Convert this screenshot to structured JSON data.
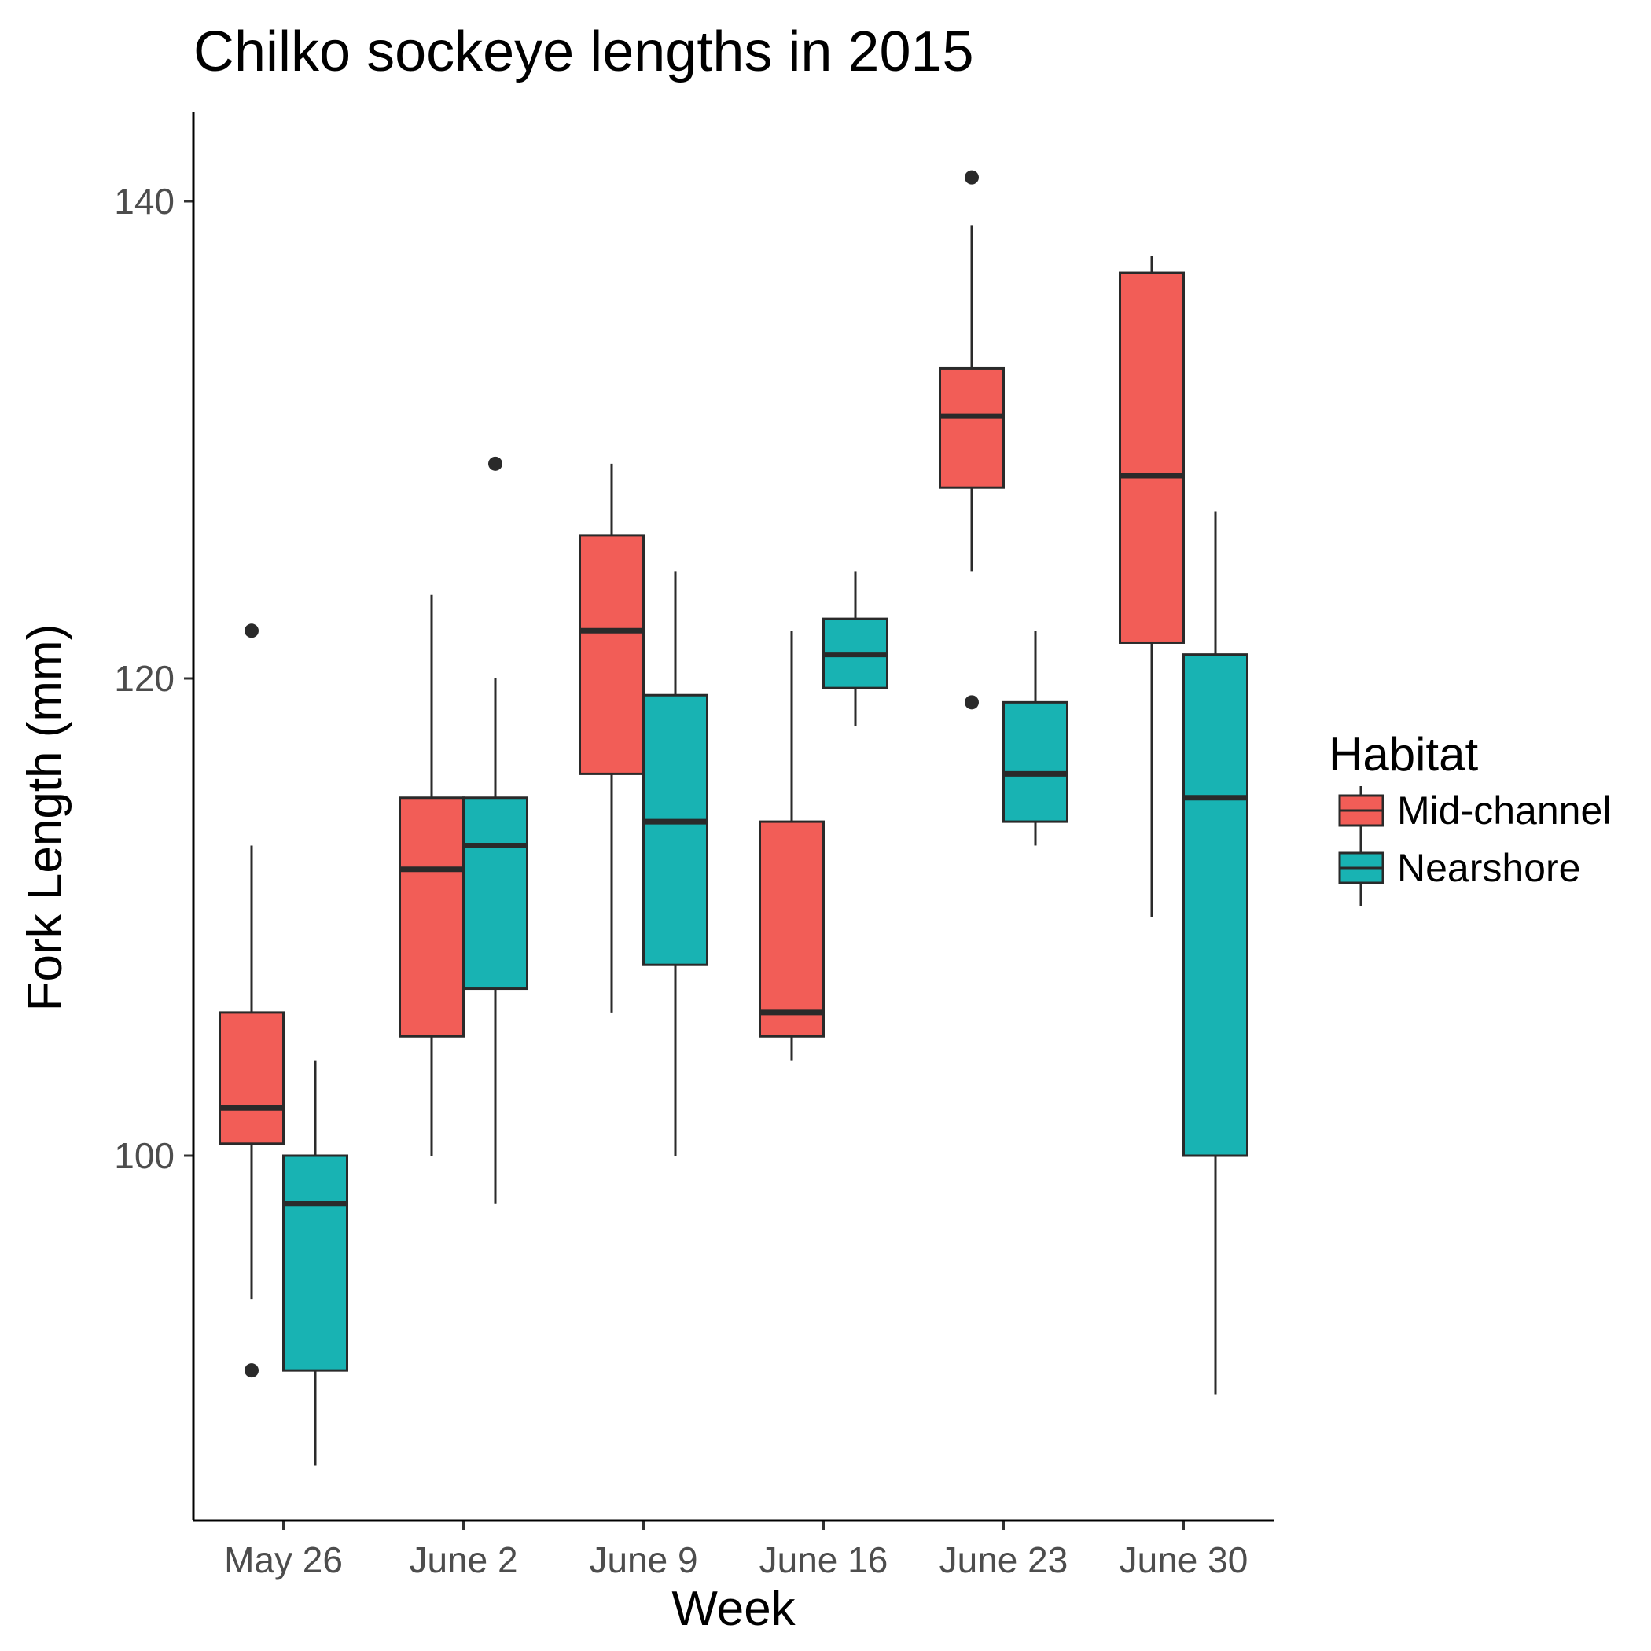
{
  "chart_data": {
    "type": "box",
    "title": "Chilko sockeye lengths in 2015",
    "xlabel": "Week",
    "ylabel": "Fork Length (mm)",
    "ylim": [
      84.5,
      145.5
    ],
    "yticks": [
      100,
      120,
      140
    ],
    "categories": [
      "May 26",
      "June 2",
      "June 9",
      "June 16",
      "June 23",
      "June 30"
    ],
    "legend": {
      "title": "Habitat",
      "position": "right",
      "entries": [
        "Mid-channel",
        "Nearshore"
      ]
    },
    "grid": false,
    "series": [
      {
        "name": "Mid-channel",
        "color": "#F25D57",
        "boxes": [
          {
            "min": 94,
            "q1": 100.5,
            "median": 102,
            "q3": 106,
            "max": 113,
            "outliers": [
              122,
              91
            ]
          },
          {
            "min": 100,
            "q1": 105,
            "median": 112,
            "q3": 115,
            "max": 123.5,
            "outliers": []
          },
          {
            "min": 106,
            "q1": 116,
            "median": 122,
            "q3": 126,
            "max": 129,
            "outliers": []
          },
          {
            "min": 104,
            "q1": 105,
            "median": 106,
            "q3": 114,
            "max": 122,
            "outliers": []
          },
          {
            "min": 124.5,
            "q1": 128,
            "median": 131,
            "q3": 133,
            "max": 139,
            "outliers": [
              141,
              119
            ]
          },
          {
            "min": 110,
            "q1": 121.5,
            "median": 128.5,
            "q3": 137,
            "max": 137.7,
            "outliers": []
          }
        ]
      },
      {
        "name": "Nearshore",
        "color": "#18B3B3",
        "boxes": [
          {
            "min": 87,
            "q1": 91,
            "median": 98,
            "q3": 100,
            "max": 104,
            "outliers": []
          },
          {
            "min": 98,
            "q1": 107,
            "median": 113,
            "q3": 115,
            "max": 120,
            "outliers": [
              129
            ]
          },
          {
            "min": 100,
            "q1": 108,
            "median": 114,
            "q3": 119.3,
            "max": 124.5,
            "outliers": []
          },
          {
            "min": 118,
            "q1": 119.6,
            "median": 121,
            "q3": 122.5,
            "max": 124.5,
            "outliers": []
          },
          {
            "min": 113,
            "q1": 114,
            "median": 116,
            "q3": 119,
            "max": 122,
            "outliers": []
          },
          {
            "min": 90,
            "q1": 100,
            "median": 115,
            "q3": 121,
            "max": 127,
            "outliers": []
          }
        ]
      }
    ]
  }
}
